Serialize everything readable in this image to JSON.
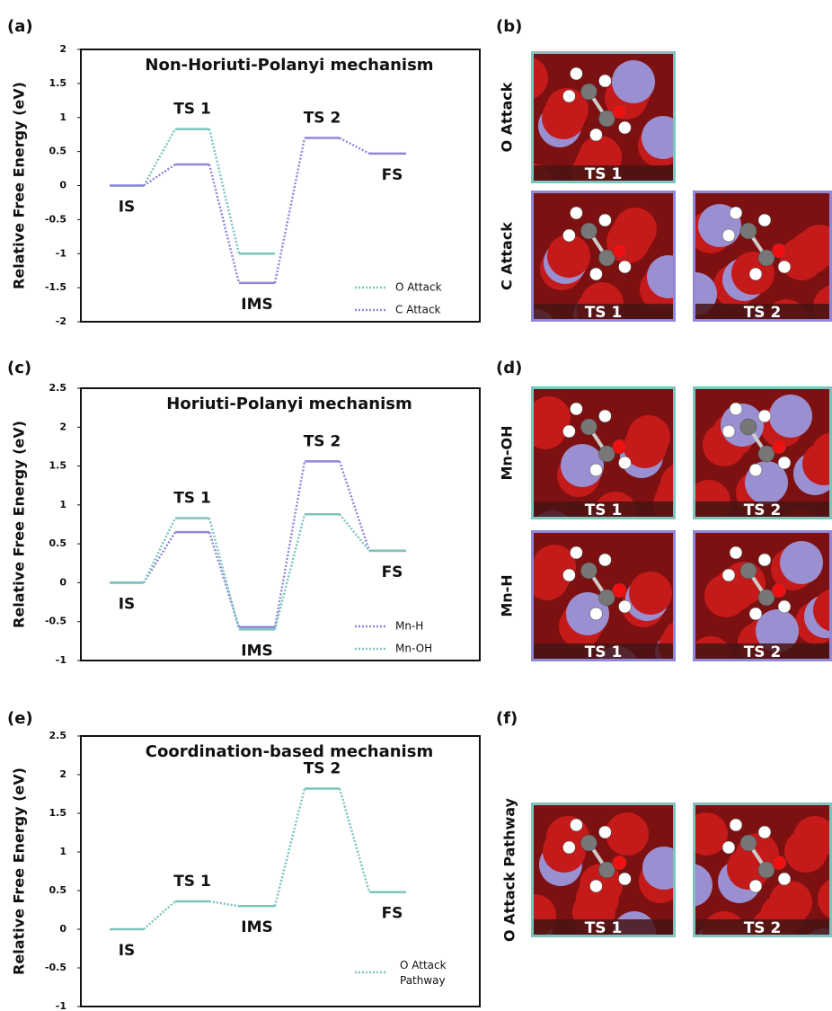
{
  "chart_data": [
    {
      "type": "energy-profile",
      "panel": "(a)",
      "title": "Non-Horiuti-Polanyi mechanism",
      "y_label": "Relative Free Energy (eV)",
      "categories": [
        "IS",
        "TS 1",
        "IMS",
        "TS 2",
        "FS"
      ],
      "series": [
        {
          "name": "O Attack",
          "color": "#7cc4bd",
          "values": [
            0,
            0.83,
            -1.0,
            null,
            null
          ]
        },
        {
          "name": "C Attack",
          "color": "#8f88d8",
          "values": [
            0,
            0.31,
            -1.43,
            0.7,
            0.47
          ]
        }
      ],
      "ylim": [
        -2,
        2
      ],
      "yticks": [
        -2,
        -1.5,
        -1,
        -0.5,
        0,
        0.5,
        1,
        1.5,
        2
      ],
      "legend": "lower right"
    },
    {
      "type": "energy-profile",
      "panel": "(c)",
      "title": "Horiuti-Polanyi mechanism",
      "y_label": "Relative Free Energy (eV)",
      "categories": [
        "IS",
        "TS 1",
        "IMS",
        "TS 2",
        "FS"
      ],
      "series": [
        {
          "name": "Mn-H",
          "color": "#8f88d8",
          "values": [
            0,
            0.65,
            -0.57,
            1.56,
            0.41
          ]
        },
        {
          "name": "Mn-OH",
          "color": "#7cc4bd",
          "values": [
            0,
            0.83,
            -0.6,
            0.88,
            0.41
          ]
        }
      ],
      "ylim": [
        -1,
        2.5
      ],
      "yticks": [
        -1,
        -0.5,
        0,
        0.5,
        1,
        1.5,
        2,
        2.5
      ],
      "legend": "lower right"
    },
    {
      "type": "energy-profile",
      "panel": "(e)",
      "title": "Coordination-based mechanism",
      "y_label": "Relative Free Energy (eV)",
      "categories": [
        "IS",
        "TS 1",
        "IMS",
        "TS 2",
        "FS"
      ],
      "series": [
        {
          "name": "O Attack Pathway",
          "color": "#7cc4bd",
          "values": [
            0,
            0.36,
            0.3,
            1.82,
            0.48
          ]
        }
      ],
      "ylim": [
        -1,
        2.5
      ],
      "yticks": [
        -1,
        -0.5,
        0,
        0.5,
        1,
        1.5,
        2,
        2.5
      ],
      "legend": "lower right"
    }
  ],
  "structures": [
    {
      "panel": "(b)",
      "rows": [
        {
          "label": "O Attack",
          "color": "#7cc4bd",
          "images": [
            "TS 1"
          ]
        },
        {
          "label": "C Attack",
          "color": "#8f88d8",
          "images": [
            "TS 1",
            "TS 2"
          ]
        }
      ]
    },
    {
      "panel": "(d)",
      "rows": [
        {
          "label": "Mn-OH",
          "color": "#7cc4bd",
          "images": [
            "TS 1",
            "TS 2"
          ]
        },
        {
          "label": "Mn-H",
          "color": "#8f88d8",
          "images": [
            "TS 1",
            "TS 2"
          ]
        }
      ]
    },
    {
      "panel": "(f)",
      "rows": [
        {
          "label": "O Attack Pathway",
          "color": "#7cc4bd",
          "images": [
            "TS 1",
            "TS 2"
          ]
        }
      ]
    }
  ]
}
